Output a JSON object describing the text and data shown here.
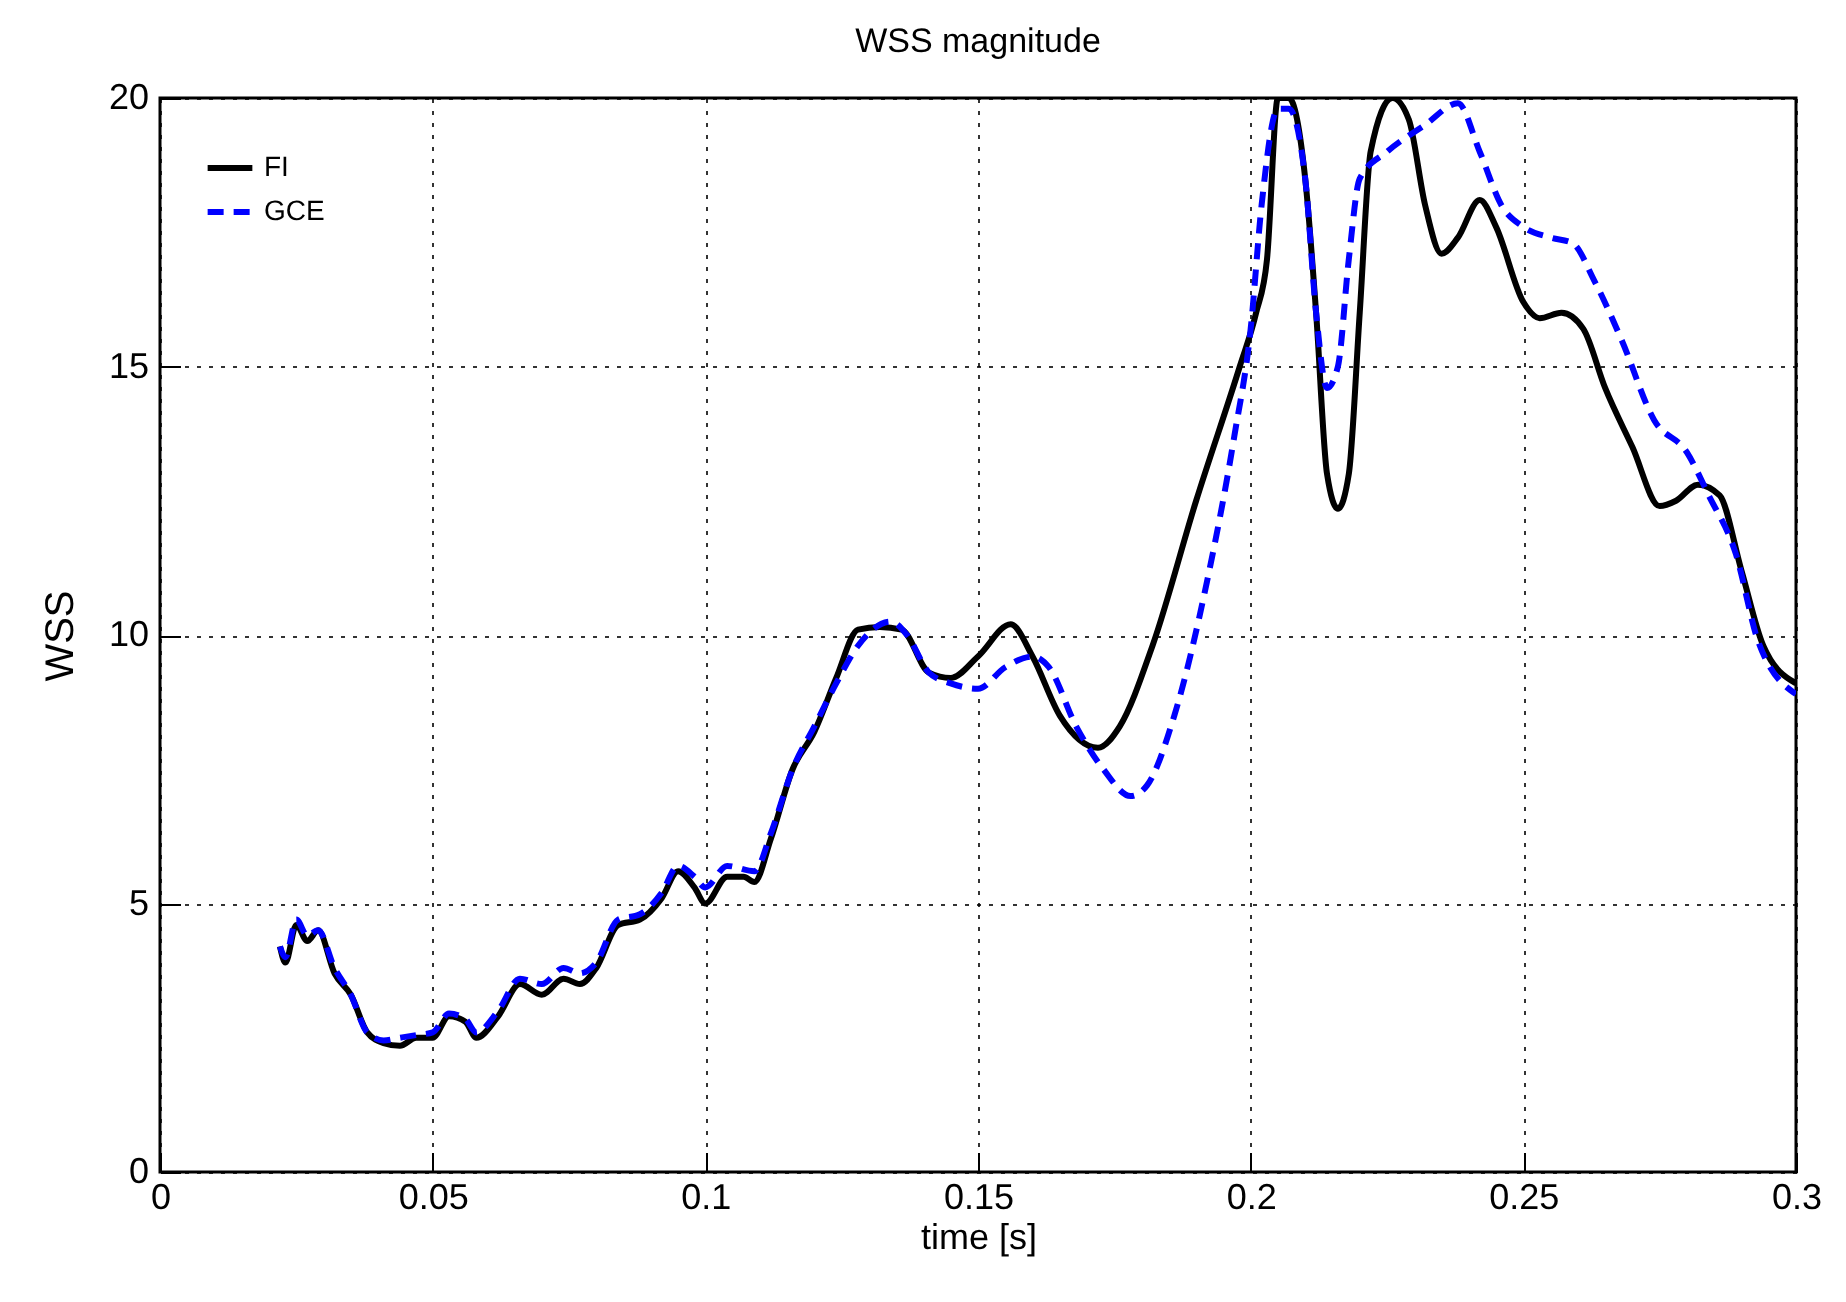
{
  "chart_data": {
    "type": "line",
    "title": "WSS magnitude",
    "xlabel": "time [s]",
    "ylabel": "WSS",
    "xlim": [
      0,
      0.3
    ],
    "xticks": [
      0,
      0.05,
      0.1,
      0.15,
      0.2,
      0.25,
      0.3
    ],
    "ylim": [
      0,
      20
    ],
    "yticks": [
      0,
      5,
      10,
      15,
      20
    ],
    "grid": true,
    "legend": "top left",
    "marker": "none",
    "series": [
      {
        "name": "FI",
        "color": "#000000",
        "line_style": "solid",
        "x": [
          0.022,
          0.023,
          0.025,
          0.027,
          0.029,
          0.032,
          0.035,
          0.038,
          0.041,
          0.044,
          0.047,
          0.05,
          0.053,
          0.056,
          0.058,
          0.062,
          0.066,
          0.07,
          0.074,
          0.077,
          0.08,
          0.084,
          0.088,
          0.092,
          0.095,
          0.098,
          0.1,
          0.104,
          0.107,
          0.109,
          0.112,
          0.116,
          0.12,
          0.124,
          0.128,
          0.132,
          0.136,
          0.141,
          0.145,
          0.15,
          0.156,
          0.16,
          0.165,
          0.172,
          0.176,
          0.182,
          0.19,
          0.198,
          0.201,
          0.203,
          0.205,
          0.207,
          0.21,
          0.212,
          0.214,
          0.216,
          0.218,
          0.22,
          0.222,
          0.226,
          0.229,
          0.232,
          0.235,
          0.238,
          0.242,
          0.245,
          0.25,
          0.253,
          0.257,
          0.261,
          0.265,
          0.27,
          0.275,
          0.278,
          0.282,
          0.286,
          0.29,
          0.294,
          0.3
        ],
        "values": [
          4.2,
          3.9,
          4.6,
          4.3,
          4.5,
          3.7,
          3.3,
          2.6,
          2.4,
          2.35,
          2.5,
          2.5,
          2.9,
          2.8,
          2.5,
          2.9,
          3.5,
          3.3,
          3.6,
          3.5,
          3.8,
          4.6,
          4.7,
          5.1,
          5.6,
          5.3,
          5.0,
          5.5,
          5.5,
          5.4,
          6.2,
          7.5,
          8.2,
          9.2,
          10.1,
          10.15,
          10.1,
          9.3,
          9.2,
          9.6,
          10.2,
          9.6,
          8.5,
          7.9,
          8.3,
          9.8,
          12.5,
          15.0,
          16.0,
          17.0,
          20.0,
          20.0,
          18.5,
          16.0,
          13.0,
          12.35,
          13.0,
          16.0,
          19.0,
          20.0,
          19.6,
          18.0,
          17.1,
          17.4,
          18.1,
          17.6,
          16.2,
          15.9,
          16.0,
          15.7,
          14.6,
          13.5,
          12.4,
          12.5,
          12.8,
          12.6,
          11.2,
          9.8,
          9.1
        ]
      },
      {
        "name": "GCE",
        "color": "#0000ff",
        "line_style": "dashed",
        "x": [
          0.022,
          0.023,
          0.025,
          0.027,
          0.029,
          0.032,
          0.035,
          0.038,
          0.041,
          0.044,
          0.047,
          0.05,
          0.053,
          0.056,
          0.058,
          0.062,
          0.066,
          0.07,
          0.074,
          0.077,
          0.08,
          0.084,
          0.088,
          0.092,
          0.095,
          0.098,
          0.1,
          0.104,
          0.109,
          0.112,
          0.116,
          0.12,
          0.124,
          0.128,
          0.134,
          0.137,
          0.141,
          0.145,
          0.15,
          0.155,
          0.16,
          0.163,
          0.168,
          0.173,
          0.178,
          0.181,
          0.186,
          0.192,
          0.197,
          0.2,
          0.202,
          0.205,
          0.207,
          0.21,
          0.212,
          0.214,
          0.216,
          0.218,
          0.22,
          0.225,
          0.232,
          0.238,
          0.242,
          0.246,
          0.25,
          0.255,
          0.259,
          0.263,
          0.268,
          0.274,
          0.28,
          0.284,
          0.289,
          0.293,
          0.3
        ],
        "values": [
          4.2,
          4.0,
          4.7,
          4.4,
          4.5,
          3.8,
          3.3,
          2.6,
          2.45,
          2.5,
          2.55,
          2.6,
          2.95,
          2.85,
          2.6,
          3.0,
          3.6,
          3.5,
          3.8,
          3.7,
          3.9,
          4.7,
          4.8,
          5.2,
          5.7,
          5.5,
          5.3,
          5.7,
          5.6,
          6.3,
          7.5,
          8.3,
          9.1,
          9.8,
          10.25,
          10.0,
          9.3,
          9.1,
          9.0,
          9.4,
          9.6,
          9.4,
          8.3,
          7.5,
          7.0,
          7.2,
          8.5,
          11.0,
          13.7,
          15.7,
          18.0,
          19.8,
          19.8,
          18.5,
          16.0,
          14.6,
          15.0,
          17.0,
          18.5,
          19.0,
          19.5,
          19.9,
          19.0,
          18.0,
          17.6,
          17.4,
          17.3,
          16.6,
          15.5,
          14.0,
          13.4,
          12.6,
          11.5,
          9.9,
          8.9
        ]
      }
    ]
  }
}
